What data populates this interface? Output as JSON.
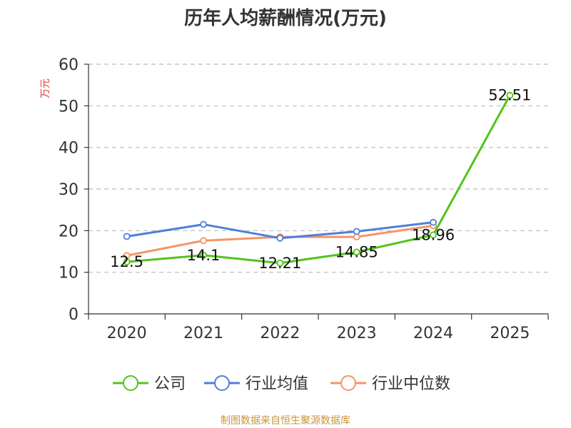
{
  "colors": {
    "company": "#52c41a",
    "industry_avg": "#4e7fdc",
    "industry_median": "#f59564",
    "grid": "#bbbbbb",
    "axis": "#333333",
    "unit_label": "#e03c3c",
    "source": "#c8963c"
  },
  "source_text": "制图数据来自恒生聚源数据库",
  "chart_data": {
    "type": "line",
    "title": "历年人均薪酬情况(万元)",
    "ylabel": "万元",
    "xlabel": "",
    "categories": [
      "2020",
      "2021",
      "2022",
      "2023",
      "2024",
      "2025"
    ],
    "ylim": [
      0,
      60
    ],
    "yticks": [
      "0",
      "10",
      "20",
      "30",
      "40",
      "50",
      "60"
    ],
    "grid": "horizontal dashed",
    "legend_position": "bottom",
    "series": [
      {
        "name": "公司",
        "color_key": "company",
        "values": [
          12.5,
          14.1,
          12.21,
          14.85,
          18.96,
          52.51
        ],
        "labels": [
          "12.5",
          "14.1",
          "12.21",
          "14.85",
          "18.96",
          "52.51"
        ]
      },
      {
        "name": "行业均值",
        "color_key": "industry_avg",
        "values": [
          18.6,
          21.5,
          18.2,
          19.8,
          22.0,
          null
        ]
      },
      {
        "name": "行业中位数",
        "color_key": "industry_median",
        "values": [
          14.0,
          17.6,
          18.5,
          18.5,
          21.2,
          null
        ]
      }
    ]
  }
}
